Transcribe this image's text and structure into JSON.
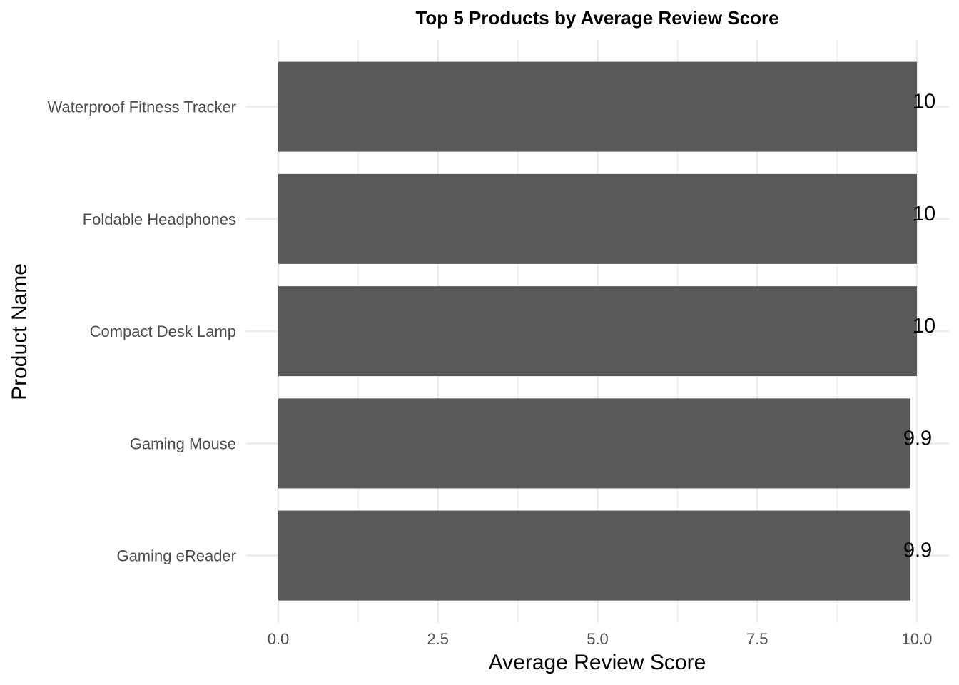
{
  "chart_data": {
    "type": "bar",
    "orientation": "horizontal",
    "title": "Top 5 Products by Average Review Score",
    "xlabel": "Average Review Score",
    "ylabel": "Product Name",
    "categories": [
      "Waterproof Fitness Tracker",
      "Foldable Headphones",
      "Compact Desk Lamp",
      "Gaming Mouse",
      "Gaming eReader"
    ],
    "values": [
      10,
      10,
      10,
      9.9,
      9.9
    ],
    "data_labels": [
      "10",
      "10",
      "10",
      "9.9",
      "9.9"
    ],
    "xlim": [
      0,
      10
    ],
    "x_ticks": [
      0,
      2.5,
      5,
      7.5,
      10
    ],
    "x_tick_labels": [
      "0.0",
      "2.5",
      "5.0",
      "7.5",
      "10.0"
    ],
    "grid": true,
    "legend": "none",
    "colors": {
      "bar": "#595959",
      "grid": "#ebebeb",
      "tick_text": "#4d4d4d",
      "text": "#000000"
    }
  }
}
